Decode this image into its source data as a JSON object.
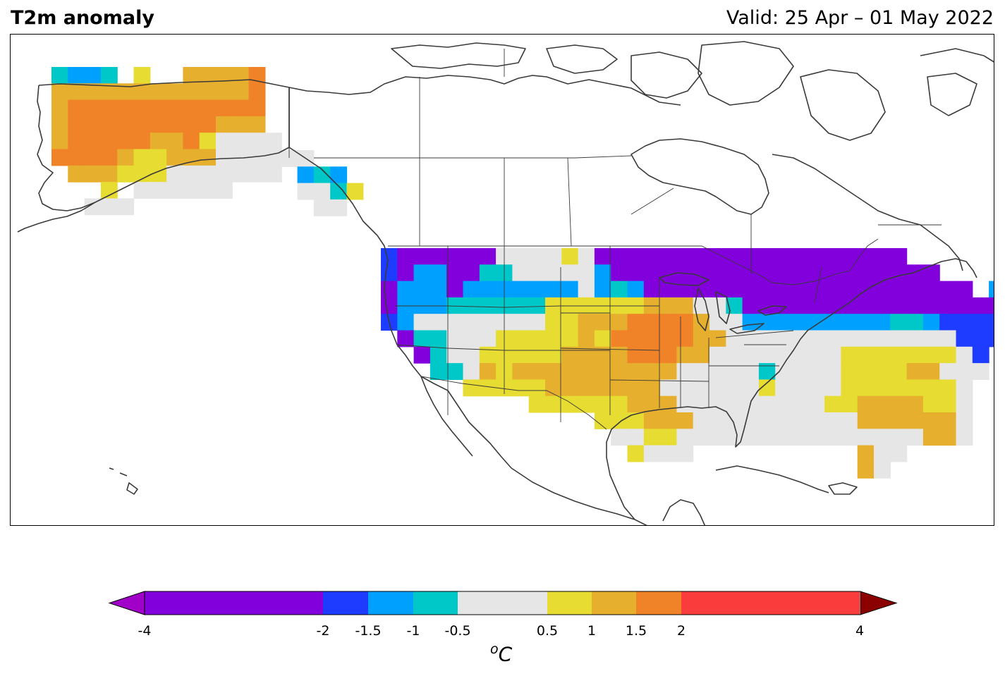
{
  "title": "T2m anomaly",
  "valid": "Valid: 25 Apr – 01 May 2022",
  "unit_o": "o",
  "unit_c": "C",
  "colorbar": {
    "ticks": [
      "-4",
      "-2",
      "-1.5",
      "-1",
      "-0.5",
      "0.5",
      "1",
      "1.5",
      "2",
      "4"
    ],
    "bins": [
      {
        "from": -4,
        "to": -2,
        "color": "#8200dc"
      },
      {
        "from": -2,
        "to": -1.5,
        "color": "#1e3cff"
      },
      {
        "from": -1.5,
        "to": -1,
        "color": "#00a0ff"
      },
      {
        "from": -1,
        "to": -0.5,
        "color": "#00c8c8"
      },
      {
        "from": -0.5,
        "to": 0.5,
        "color": "#e6e6e6"
      },
      {
        "from": 0.5,
        "to": 1,
        "color": "#e6dc32"
      },
      {
        "from": 1,
        "to": 1.5,
        "color": "#e6af2d"
      },
      {
        "from": 1.5,
        "to": 2,
        "color": "#f08228"
      },
      {
        "from": 2,
        "to": 4,
        "color": "#fa3c3c"
      }
    ],
    "under_color": "#a000c8",
    "over_color": "#8b0000"
  }
}
